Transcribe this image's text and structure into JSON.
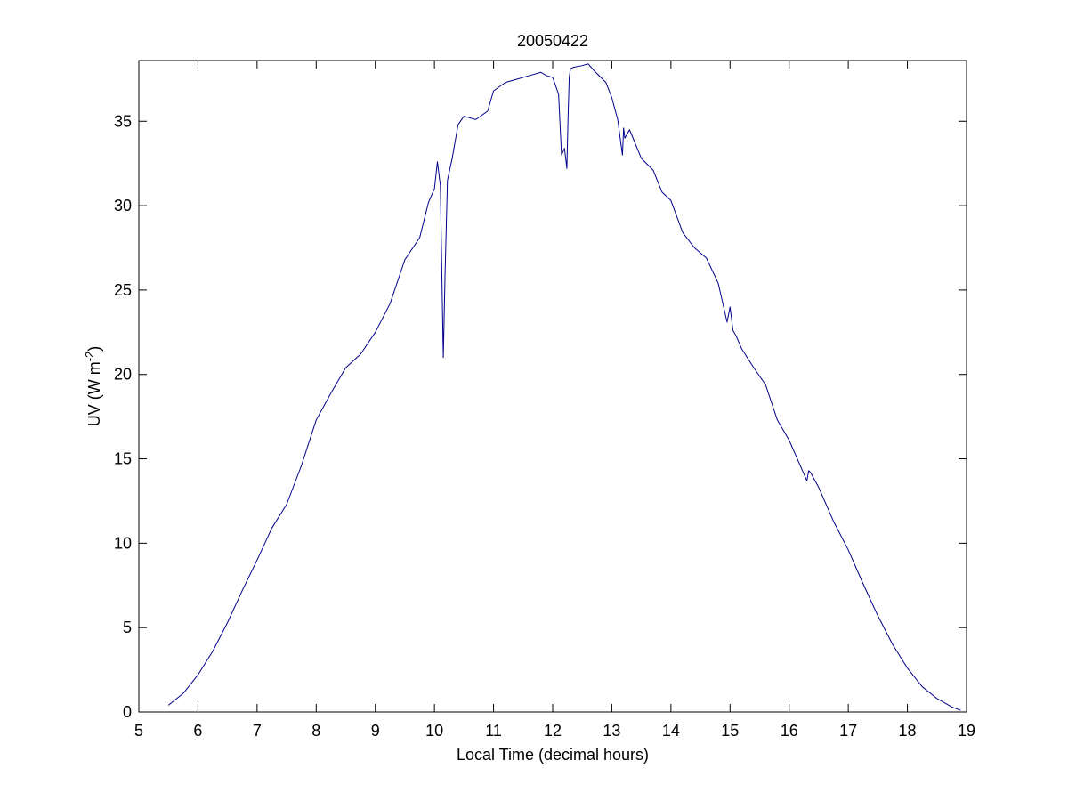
{
  "chart_data": {
    "type": "line",
    "title": "20050422",
    "xlabel": "Local Time (decimal hours)",
    "ylabel": {
      "prefix": "UV (W m",
      "superscript": "-2",
      "suffix": ")"
    },
    "xlim": [
      5,
      19
    ],
    "ylim": [
      0,
      38.6
    ],
    "xticks": [
      5,
      6,
      7,
      8,
      9,
      10,
      11,
      12,
      13,
      14,
      15,
      16,
      17,
      18,
      19
    ],
    "yticks": [
      0,
      5,
      10,
      15,
      20,
      25,
      30,
      35
    ],
    "grid": false,
    "legend": "none",
    "line_color": "#00008b",
    "series": [
      {
        "x": [
          5.5,
          5.75,
          6.0,
          6.25,
          6.5,
          6.75,
          7.0,
          7.25,
          7.5,
          7.75,
          8.0,
          8.25,
          8.5,
          8.75,
          9.0,
          9.25,
          9.5,
          9.75,
          9.9,
          10.0,
          10.05,
          10.1,
          10.13,
          10.15,
          10.18,
          10.22,
          10.3,
          10.4,
          10.5,
          10.7,
          10.9,
          11.0,
          11.2,
          11.4,
          11.6,
          11.8,
          11.9,
          12.0,
          12.1,
          12.15,
          12.2,
          12.24,
          12.26,
          12.28,
          12.3,
          12.35,
          12.5,
          12.6,
          12.7,
          12.9,
          13.0,
          13.1,
          13.18,
          13.2,
          13.22,
          13.3,
          13.5,
          13.7,
          13.85,
          14.0,
          14.2,
          14.4,
          14.6,
          14.8,
          14.95,
          15.0,
          15.05,
          15.1,
          15.2,
          15.4,
          15.6,
          15.8,
          16.0,
          16.2,
          16.3,
          16.33,
          16.36,
          16.5,
          16.75,
          17.0,
          17.25,
          17.5,
          17.75,
          18.0,
          18.25,
          18.5,
          18.75,
          18.9
        ],
        "y": [
          0.4,
          1.1,
          2.2,
          3.6,
          5.3,
          7.2,
          9.0,
          10.9,
          12.3,
          14.6,
          17.3,
          18.9,
          20.4,
          21.2,
          22.5,
          24.2,
          26.8,
          28.1,
          30.2,
          31.0,
          32.6,
          31.2,
          25.0,
          21.0,
          26.0,
          31.5,
          32.8,
          34.8,
          35.3,
          35.1,
          35.6,
          36.8,
          37.3,
          37.5,
          37.7,
          37.9,
          37.7,
          37.6,
          36.6,
          33.0,
          33.4,
          32.2,
          35.2,
          37.6,
          38.1,
          38.2,
          38.3,
          38.4,
          38.0,
          37.3,
          36.4,
          35.1,
          33.0,
          34.6,
          34.0,
          34.5,
          32.8,
          32.1,
          30.8,
          30.3,
          28.4,
          27.5,
          26.9,
          25.4,
          23.1,
          24.0,
          22.6,
          22.3,
          21.5,
          20.4,
          19.4,
          17.3,
          16.1,
          14.5,
          13.7,
          14.3,
          14.2,
          13.3,
          11.3,
          9.6,
          7.6,
          5.7,
          4.0,
          2.6,
          1.5,
          0.8,
          0.3,
          0.1
        ]
      }
    ]
  }
}
